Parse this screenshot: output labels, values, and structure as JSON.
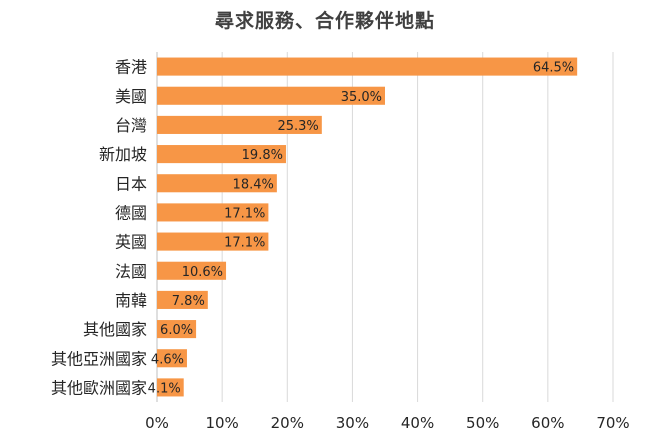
{
  "chart_data": {
    "type": "bar",
    "orientation": "horizontal",
    "title": "尋求服務、合作夥伴地點",
    "categories": [
      "香港",
      "美國",
      "台灣",
      "新加坡",
      "日本",
      "德國",
      "英國",
      "法國",
      "南韓",
      "其他國家",
      "其他亞洲國家",
      "其他歐洲國家"
    ],
    "values": [
      64.5,
      35.0,
      25.3,
      19.8,
      18.4,
      17.1,
      17.1,
      10.6,
      7.8,
      6.0,
      4.6,
      4.1
    ],
    "data_labels": [
      "64.5%",
      "35.0%",
      "25.3%",
      "19.8%",
      "18.4%",
      "17.1%",
      "17.1%",
      "10.6%",
      "7.8%",
      "6.0%",
      "4.6%",
      "4.1%"
    ],
    "x_ticks": [
      0,
      10,
      20,
      30,
      40,
      50,
      60,
      70
    ],
    "x_tick_labels": [
      "0%",
      "10%",
      "20%",
      "30%",
      "40%",
      "50%",
      "60%",
      "70%"
    ],
    "xlim": [
      0,
      70
    ],
    "xlabel": "",
    "ylabel": "",
    "grid": true,
    "colors": {
      "bar": "#F79646",
      "grid": "#D9D9D9",
      "text": "#262626"
    }
  }
}
